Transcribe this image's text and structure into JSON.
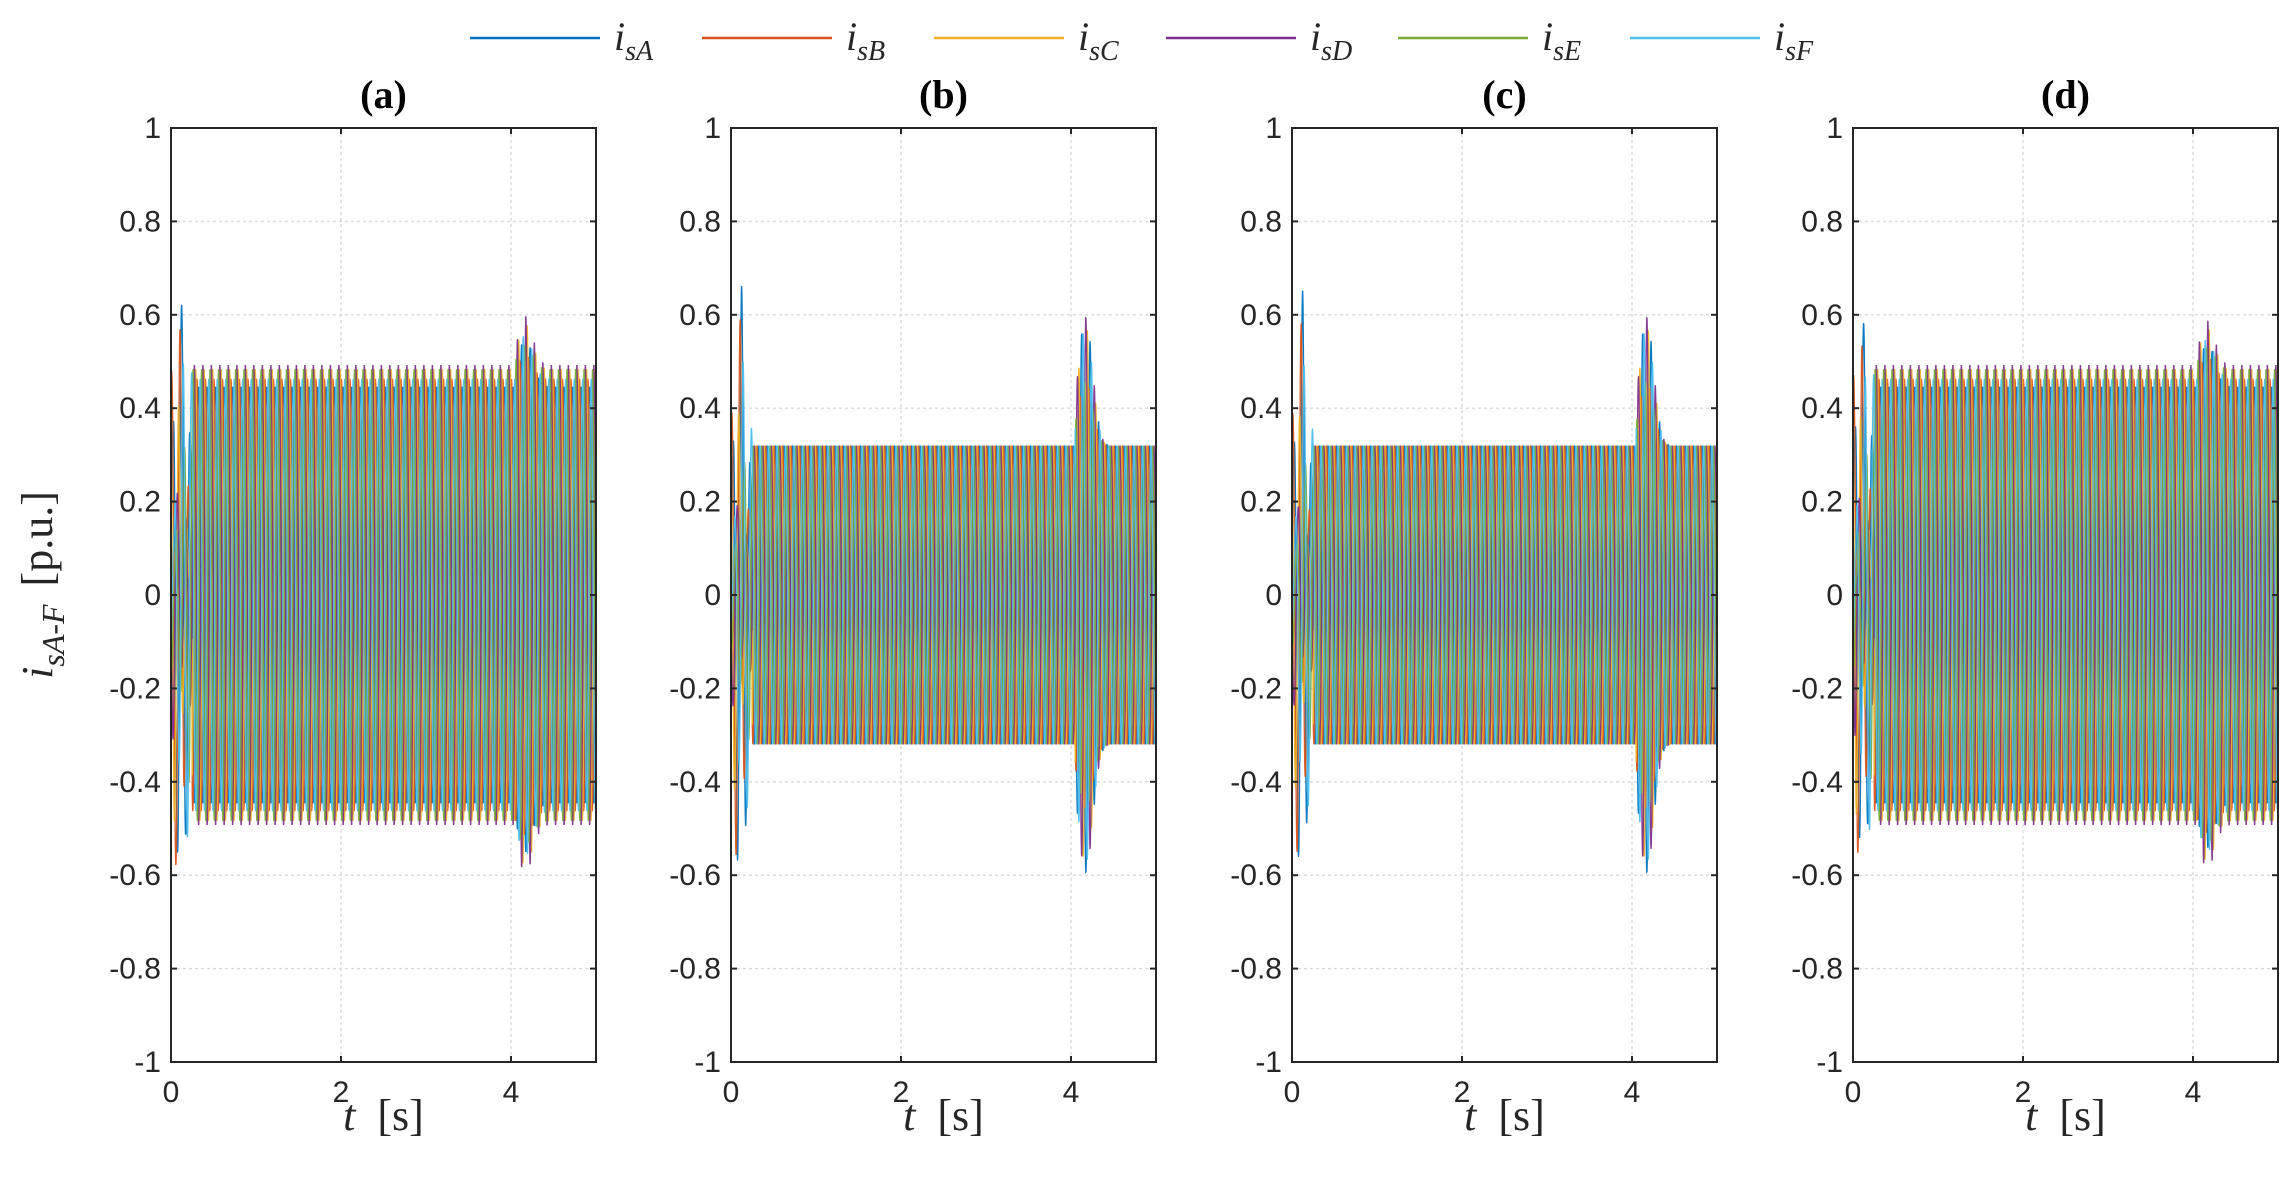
{
  "chart_data": [
    {
      "type": "line",
      "title": "(a)",
      "xlabel": "t  [s]",
      "ylabel": "i_sA-F  [p.u.]",
      "xlim": [
        0,
        5
      ],
      "ylim": [
        -1,
        1
      ],
      "xticks": [
        "0",
        "2",
        "4"
      ],
      "yticks": [
        "1",
        "0.8",
        "0.6",
        "0.4",
        "0.2",
        "0",
        "-0.2",
        "-0.4",
        "-0.6",
        "-0.8",
        "-1"
      ],
      "grid": true,
      "steady_amplitude_1": 0.47,
      "steady_amplitude_2": 0.47,
      "transient_peak": 0.65,
      "fault_time": 4.1,
      "fault_peak": 0.58,
      "inner_ripple": 0.08,
      "series": [
        {
          "name": "isA",
          "color": "#0072BD"
        },
        {
          "name": "isB",
          "color": "#D95319"
        },
        {
          "name": "isC",
          "color": "#EDB120"
        },
        {
          "name": "isD",
          "color": "#7E2F8E"
        },
        {
          "name": "isE",
          "color": "#77AC30"
        },
        {
          "name": "isF",
          "color": "#4DBEEE"
        }
      ]
    },
    {
      "type": "line",
      "title": "(b)",
      "xlabel": "t  [s]",
      "xlim": [
        0,
        5
      ],
      "ylim": [
        -1,
        1
      ],
      "xticks": [
        "0",
        "2",
        "4"
      ],
      "yticks": [
        "1",
        "0.8",
        "0.6",
        "0.4",
        "0.2",
        "0",
        "-0.2",
        "-0.4",
        "-0.6",
        "-0.8",
        "-1"
      ],
      "grid": true,
      "steady_amplitude_1": 0.32,
      "steady_amplitude_2": 0.32,
      "transient_peak": 0.67,
      "fault_time": 4.1,
      "fault_peak": 0.61,
      "inner_ripple": 0.0,
      "series": [
        {
          "name": "isA",
          "color": "#0072BD"
        },
        {
          "name": "isB",
          "color": "#D95319"
        },
        {
          "name": "isC",
          "color": "#EDB120"
        },
        {
          "name": "isD",
          "color": "#7E2F8E"
        },
        {
          "name": "isE",
          "color": "#77AC30"
        },
        {
          "name": "isF",
          "color": "#4DBEEE"
        }
      ]
    },
    {
      "type": "line",
      "title": "(c)",
      "xlabel": "t  [s]",
      "xlim": [
        0,
        5
      ],
      "ylim": [
        -1,
        1
      ],
      "xticks": [
        "0",
        "2",
        "4"
      ],
      "yticks": [
        "1",
        "0.8",
        "0.6",
        "0.4",
        "0.2",
        "0",
        "-0.2",
        "-0.4",
        "-0.6",
        "-0.8",
        "-1"
      ],
      "grid": true,
      "steady_amplitude_1": 0.32,
      "steady_amplitude_2": 0.32,
      "transient_peak": 0.66,
      "fault_time": 4.1,
      "fault_peak": 0.61,
      "inner_ripple": 0.0,
      "series": [
        {
          "name": "isA",
          "color": "#0072BD"
        },
        {
          "name": "isB",
          "color": "#D95319"
        },
        {
          "name": "isC",
          "color": "#EDB120"
        },
        {
          "name": "isD",
          "color": "#7E2F8E"
        },
        {
          "name": "isE",
          "color": "#77AC30"
        },
        {
          "name": "isF",
          "color": "#4DBEEE"
        }
      ]
    },
    {
      "type": "line",
      "title": "(d)",
      "xlabel": "t  [s]",
      "xlim": [
        0,
        5
      ],
      "ylim": [
        -1,
        1
      ],
      "xticks": [
        "0",
        "2",
        "4"
      ],
      "yticks": [
        "1",
        "0.8",
        "0.6",
        "0.4",
        "0.2",
        "0",
        "-0.2",
        "-0.4",
        "-0.6",
        "-0.8",
        "-1"
      ],
      "grid": true,
      "steady_amplitude_1": 0.47,
      "steady_amplitude_2": 0.47,
      "transient_peak": 0.61,
      "fault_time": 4.1,
      "fault_peak": 0.57,
      "inner_ripple": 0.08,
      "series": [
        {
          "name": "isA",
          "color": "#0072BD"
        },
        {
          "name": "isB",
          "color": "#D95319"
        },
        {
          "name": "isC",
          "color": "#EDB120"
        },
        {
          "name": "isD",
          "color": "#7E2F8E"
        },
        {
          "name": "isE",
          "color": "#77AC30"
        },
        {
          "name": "isF",
          "color": "#4DBEEE"
        }
      ]
    }
  ],
  "legend": {
    "placement": "top-center",
    "entries": [
      {
        "base": "i",
        "sub": "sA",
        "color": "#0072BD"
      },
      {
        "base": "i",
        "sub": "sB",
        "color": "#D95319"
      },
      {
        "base": "i",
        "sub": "sC",
        "color": "#EDB120"
      },
      {
        "base": "i",
        "sub": "sD",
        "color": "#7E2F8E"
      },
      {
        "base": "i",
        "sub": "sE",
        "color": "#77AC30"
      },
      {
        "base": "i",
        "sub": "sF",
        "color": "#4DBEEE"
      }
    ]
  },
  "ylabel_parts": {
    "base": "i",
    "sub": "sA-F",
    "unit": "[p.u.]"
  },
  "xlabel_parts": {
    "var": "t",
    "unit": "[s]"
  }
}
